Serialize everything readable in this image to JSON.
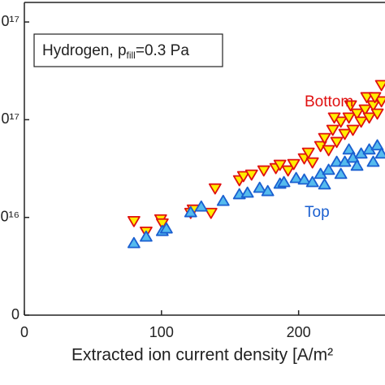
{
  "chart_data": {
    "type": "scatter",
    "annotation": {
      "text": "Hydrogen, p",
      "subscript": "fill",
      "suffix": "=0.3 Pa"
    },
    "xlabel": "Extracted ion current density [A/m²",
    "xlim": [
      0,
      263
    ],
    "xticks": [
      0,
      100,
      200
    ],
    "ylim": [
      0,
      1.6e+17
    ],
    "yticks": [
      {
        "value": 0,
        "label": "0"
      },
      {
        "value": 5e+16,
        "label": "0¹⁶"
      },
      {
        "value": 1e+17,
        "label": "0¹⁷"
      },
      {
        "value": 1.5e+17,
        "label": "0¹⁷"
      }
    ],
    "series": [
      {
        "name": "Bottom",
        "color": "#ffee00",
        "edge": "#e01010",
        "marker": "triangle-down",
        "x": [
          79.9,
          88.8,
          99.4,
          100.6,
          121.3,
          123.1,
          136.1,
          139.1,
          156.8,
          159.8,
          165.7,
          174.6,
          183.4,
          186.4,
          192.3,
          196.4,
          204.1,
          207.1,
          210.1,
          216.0,
          218.9,
          221.9,
          224.9,
          227.8,
          230.8,
          233.7,
          236.7,
          239.6,
          242.6,
          245.6,
          248.5,
          251.5,
          254.4,
          257.4,
          260.4,
          226.0,
          237.9,
          249.7,
          255.6,
          260.4
        ],
        "values": [
          4.83e+16,
          4.29e+16,
          4.92e+16,
          4.71e+16,
          5.25e+16,
          5.42e+16,
          5.25e+16,
          6.5e+16,
          6.92e+16,
          7.13e+16,
          7.21e+16,
          7.42e+16,
          7.54e+16,
          7.71e+16,
          7.42e+16,
          7.75e+16,
          8.04e+16,
          8.33e+16,
          7.83e+16,
          8.67e+16,
          9.08e+16,
          8.46e+16,
          9.5e+16,
          8.88e+16,
          9.92e+16,
          9.29e+16,
          1.013e+17,
          9.5e+16,
          1.033e+17,
          9.92e+16,
          1.054e+17,
          1.013e+17,
          1.075e+17,
          1.033e+17,
          1.096e+17,
          1.013e+17,
          1.075e+17,
          1.117e+17,
          1.117e+17,
          1.179e+17
        ]
      },
      {
        "name": "Top",
        "color": "#55bbee",
        "edge": "#1a5fd0",
        "marker": "triangle-up",
        "x": [
          79.9,
          88.8,
          100.6,
          103.6,
          121.3,
          129.0,
          145.0,
          156.8,
          162.7,
          171.6,
          177.5,
          186.4,
          189.3,
          198.2,
          204.1,
          210.1,
          216.0,
          218.9,
          221.9,
          227.8,
          230.8,
          233.7,
          236.7,
          239.6,
          242.6,
          245.6,
          251.5,
          254.4,
          257.4,
          260.4
        ],
        "values": [
          3.67e+16,
          4e+16,
          4.29e+16,
          4.42e+16,
          5.25e+16,
          5.54e+16,
          5.83e+16,
          6.17e+16,
          6.25e+16,
          6.5e+16,
          6.33e+16,
          6.71e+16,
          6.79e+16,
          7e+16,
          6.92e+16,
          6.79e+16,
          7.21e+16,
          6.67e+16,
          7.42e+16,
          7.83e+16,
          7.21e+16,
          7.83e+16,
          8.46e+16,
          8.04e+16,
          7.63e+16,
          8.25e+16,
          8.46e+16,
          7.83e+16,
          8.67e+16,
          8.25e+16
        ]
      }
    ]
  }
}
